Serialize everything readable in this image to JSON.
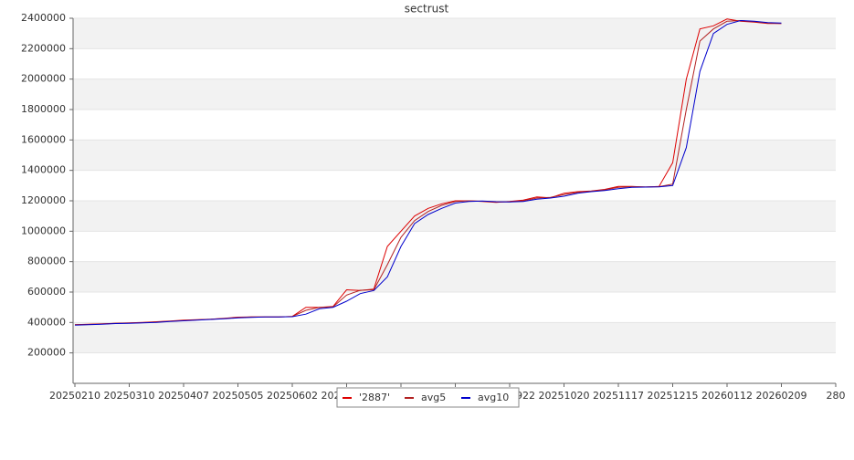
{
  "chart_data": {
    "type": "line",
    "title": "sectrust",
    "x": [
      "20250210",
      "20250217",
      "20250224",
      "20250303",
      "20250310",
      "20250317",
      "20250324",
      "20250331",
      "20250407",
      "20250414",
      "20250421",
      "20250428",
      "20250505",
      "20250512",
      "20250519",
      "20250526",
      "20250602",
      "20250609",
      "20250616",
      "20250623",
      "20250630",
      "20250707",
      "20250714",
      "20250721",
      "20250728",
      "20250804",
      "20250811",
      "20250818",
      "20250825",
      "20250901",
      "20250908",
      "20250915",
      "20250922",
      "20250929",
      "20251006",
      "20251013",
      "20251020",
      "20251027",
      "20251103",
      "20251110",
      "20251117",
      "20251124",
      "20251201",
      "20251208",
      "20251215",
      "20251222",
      "20251229",
      "20260105",
      "20260112",
      "20260119",
      "20260126",
      "20260202",
      "20260209"
    ],
    "series": [
      {
        "name": "'2887'",
        "color": "#dd0000",
        "values": [
          385000,
          388000,
          392000,
          395000,
          397000,
          400000,
          405000,
          410000,
          415000,
          418000,
          422000,
          428000,
          435000,
          437000,
          437000,
          437000,
          440000,
          500000,
          500000,
          505000,
          615000,
          610000,
          620000,
          900000,
          1000000,
          1100000,
          1150000,
          1180000,
          1200000,
          1200000,
          1195000,
          1190000,
          1195000,
          1205000,
          1225000,
          1220000,
          1250000,
          1260000,
          1265000,
          1275000,
          1295000,
          1295000,
          1290000,
          1295000,
          1450000,
          2000000,
          2330000,
          2350000,
          2395000,
          2380000,
          2375000,
          2365000,
          2365000
        ]
      },
      {
        "name": "avg5",
        "color": "#b22222",
        "values": [
          385000,
          387000,
          390000,
          394000,
          396000,
          399000,
          403000,
          408000,
          413000,
          417000,
          421000,
          426000,
          432000,
          436000,
          437000,
          437000,
          439000,
          480000,
          500000,
          503000,
          580000,
          612000,
          615000,
          780000,
          960000,
          1070000,
          1130000,
          1170000,
          1195000,
          1200000,
          1197000,
          1192000,
          1193000,
          1200000,
          1218000,
          1222000,
          1240000,
          1255000,
          1263000,
          1272000,
          1288000,
          1293000,
          1291000,
          1293000,
          1310000,
          1800000,
          2250000,
          2330000,
          2380000,
          2385000,
          2378000,
          2368000,
          2365000
        ]
      },
      {
        "name": "avg10",
        "color": "#0000cc",
        "values": [
          383000,
          386000,
          389000,
          393000,
          395000,
          398000,
          401000,
          406000,
          411000,
          415000,
          420000,
          424000,
          430000,
          434000,
          436000,
          437000,
          438000,
          455000,
          490000,
          500000,
          540000,
          590000,
          610000,
          700000,
          900000,
          1050000,
          1110000,
          1150000,
          1185000,
          1195000,
          1198000,
          1194000,
          1192000,
          1196000,
          1210000,
          1218000,
          1230000,
          1250000,
          1260000,
          1268000,
          1280000,
          1288000,
          1290000,
          1291000,
          1300000,
          1550000,
          2050000,
          2300000,
          2360000,
          2385000,
          2380000,
          2372000,
          2368000
        ]
      }
    ],
    "xlim": [
      "20250210",
      "20260309"
    ],
    "xticks": [
      "20250210",
      "20250310",
      "20250407",
      "20250505",
      "20250602",
      "20250630",
      "20250728",
      "20250825",
      "20250922",
      "20251020",
      "20251117",
      "20251215",
      "20260112",
      "20260209",
      {
        "value": "20260309",
        "label": "280"
      }
    ],
    "ylim": [
      0,
      2400000
    ],
    "yticks": [
      200000,
      400000,
      600000,
      800000,
      1000000,
      1200000,
      1400000,
      1600000,
      1800000,
      2000000,
      2200000,
      2400000
    ],
    "grid": true,
    "legend": "bottom"
  }
}
